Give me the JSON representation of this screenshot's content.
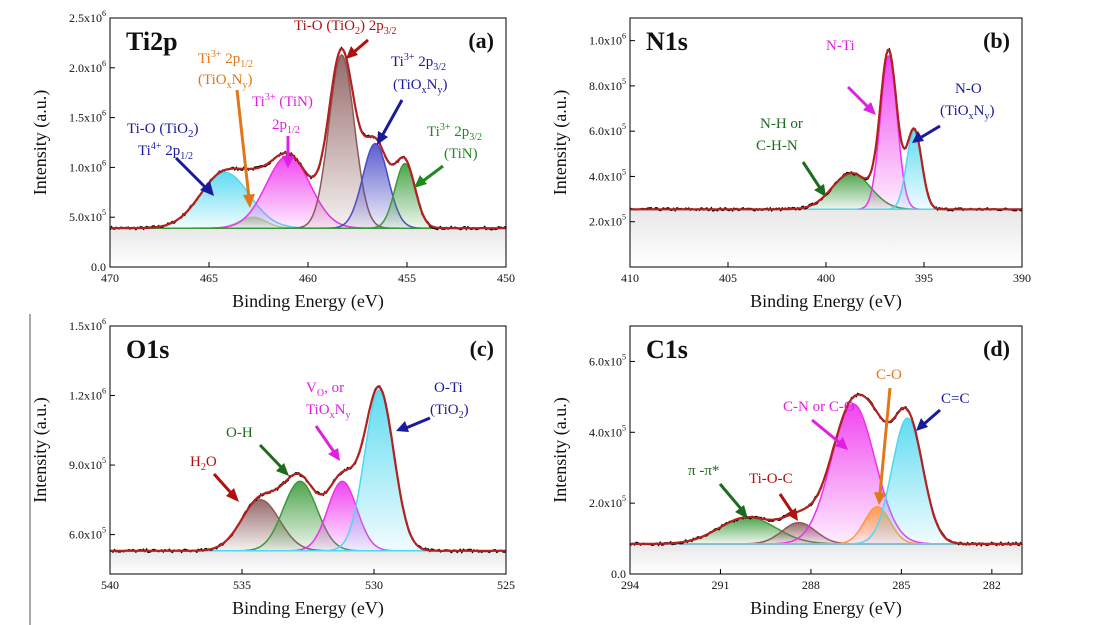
{
  "colors": {
    "envelope": "#b22222",
    "experimental": "#000000",
    "cyan": "#4fd8f0",
    "blue_pk": "#4a4ac8",
    "magenta": "#ee30ee",
    "brown": "#8b5a5a",
    "green": "#3a9a3a",
    "orange": "#ff9a3c",
    "lightgreen": "#9fd98a",
    "ann_blue": "#1a1a9c",
    "ann_red": "#b01010",
    "ann_orange": "#e0781a",
    "ann_magenta": "#e020e0",
    "ann_green": "#1f8a1f",
    "ann_dkgreen": "#1e6b1e",
    "ann_ltblue": "#2060d0"
  },
  "chart_data": [
    {
      "id": "a",
      "type": "line",
      "title": "Ti2p",
      "letter": "(a)",
      "xlabel": "Binding Energy (eV)",
      "ylabel": "Intensity (a.u.)",
      "xlim": [
        470,
        450
      ],
      "ylim": [
        0,
        2500000
      ],
      "baseline": 390000,
      "xticks": [
        470,
        465,
        460,
        455,
        450
      ],
      "yticks": [
        {
          "v": 0,
          "m": "0.0",
          "e": ""
        },
        {
          "v": 500000,
          "m": "5.0x10",
          "e": "5"
        },
        {
          "v": 1000000,
          "m": "1.0x10",
          "e": "6"
        },
        {
          "v": 1500000,
          "m": "1.5x10",
          "e": "6"
        },
        {
          "v": 2000000,
          "m": "2.0x10",
          "e": "6"
        },
        {
          "v": 2500000,
          "m": "2.5x10",
          "e": "6"
        }
      ],
      "peaks": [
        {
          "center": 464.2,
          "height": 560000,
          "fwhm": 2.9,
          "color": "cyan"
        },
        {
          "center": 462.8,
          "height": 110000,
          "fwhm": 1.6,
          "color": "lightgreen"
        },
        {
          "center": 461.0,
          "height": 730000,
          "fwhm": 2.6,
          "color": "magenta"
        },
        {
          "center": 458.3,
          "height": 1740000,
          "fwhm": 1.5,
          "color": "brown"
        },
        {
          "center": 456.6,
          "height": 850000,
          "fwhm": 1.5,
          "color": "blue_pk"
        },
        {
          "center": 455.1,
          "height": 650000,
          "fwhm": 1.2,
          "color": "green"
        }
      ]
    },
    {
      "id": "b",
      "type": "line",
      "title": "N1s",
      "letter": "(b)",
      "xlabel": "Binding Energy (eV)",
      "ylabel": "Intensity (a.u.)",
      "xlim": [
        410,
        390
      ],
      "ylim": [
        0,
        1100000
      ],
      "baseline": 255000,
      "xticks": [
        410,
        405,
        400,
        395,
        390
      ],
      "yticks": [
        {
          "v": 200000,
          "m": "2.0x10",
          "e": "5"
        },
        {
          "v": 400000,
          "m": "4.0x10",
          "e": "5"
        },
        {
          "v": 600000,
          "m": "6.0x10",
          "e": "5"
        },
        {
          "v": 800000,
          "m": "8.0x10",
          "e": "5"
        },
        {
          "v": 1000000,
          "m": "1.0x10",
          "e": "6"
        }
      ],
      "peaks": [
        {
          "center": 398.7,
          "height": 160000,
          "fwhm": 2.3,
          "color": "green"
        },
        {
          "center": 396.8,
          "height": 680000,
          "fwhm": 1.0,
          "color": "magenta"
        },
        {
          "center": 395.5,
          "height": 350000,
          "fwhm": 0.9,
          "color": "cyan"
        }
      ]
    },
    {
      "id": "c",
      "type": "line",
      "title": "O1s",
      "letter": "(c)",
      "xlabel": "Binding Energy (eV)",
      "ylabel": "Intensity (a.u.)",
      "xlim": [
        540,
        525
      ],
      "ylim": [
        430000,
        1500000
      ],
      "baseline": 530000,
      "xticks": [
        540,
        535,
        530,
        525
      ],
      "yticks": [
        {
          "v": 600000,
          "m": "6.0x10",
          "e": "5"
        },
        {
          "v": 900000,
          "m": "9.0x10",
          "e": "5"
        },
        {
          "v": 1200000,
          "m": "1.2x10",
          "e": "6"
        },
        {
          "v": 1500000,
          "m": "1.5x10",
          "e": "6"
        }
      ],
      "peaks": [
        {
          "center": 534.3,
          "height": 220000,
          "fwhm": 1.7,
          "color": "brown"
        },
        {
          "center": 532.8,
          "height": 300000,
          "fwhm": 1.5,
          "color": "green"
        },
        {
          "center": 531.2,
          "height": 300000,
          "fwhm": 1.3,
          "color": "magenta"
        },
        {
          "center": 529.8,
          "height": 695000,
          "fwhm": 1.3,
          "color": "cyan"
        }
      ]
    },
    {
      "id": "d",
      "type": "line",
      "title": "C1s",
      "letter": "(d)",
      "xlabel": "Binding Energy (eV)",
      "ylabel": "Intensity (a.u.)",
      "xlim": [
        294,
        281
      ],
      "ylim": [
        0,
        700000
      ],
      "baseline": 85000,
      "xticks": [
        294,
        291,
        288,
        285,
        282
      ],
      "yticks": [
        {
          "v": 0,
          "m": "0.0",
          "e": ""
        },
        {
          "v": 200000,
          "m": "2.0x10",
          "e": "5"
        },
        {
          "v": 400000,
          "m": "4.0x10",
          "e": "5"
        },
        {
          "v": 600000,
          "m": "6.0x10",
          "e": "5"
        }
      ],
      "peaks": [
        {
          "center": 290.1,
          "height": 75000,
          "fwhm": 2.2,
          "color": "green"
        },
        {
          "center": 288.4,
          "height": 60000,
          "fwhm": 1.3,
          "color": "brown"
        },
        {
          "center": 286.6,
          "height": 395000,
          "fwhm": 1.7,
          "color": "magenta"
        },
        {
          "center": 285.8,
          "height": 105000,
          "fwhm": 1.0,
          "color": "orange"
        },
        {
          "center": 284.8,
          "height": 355000,
          "fwhm": 1.2,
          "color": "cyan"
        }
      ]
    }
  ]
}
